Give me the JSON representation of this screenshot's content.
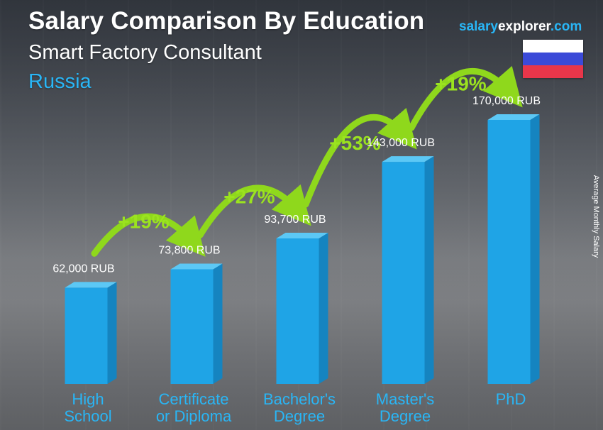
{
  "header": {
    "title": "Salary Comparison By Education",
    "subtitle": "Smart Factory Consultant",
    "country": "Russia"
  },
  "brand": {
    "part1": "salary",
    "part2": "explorer",
    "part3": ".com"
  },
  "side_label": "Average Monthly Salary",
  "colors": {
    "bar_front": "#1fa4e6",
    "bar_side": "#1584c0",
    "bar_top": "#5cc8f5",
    "arrow": "#8fd81c",
    "category_text": "#29b6f6",
    "pct_text": "#9be31f"
  },
  "chart_data": {
    "type": "bar",
    "categories": [
      [
        "High",
        "School"
      ],
      [
        "Certificate",
        "or Diploma"
      ],
      [
        "Bachelor's",
        "Degree"
      ],
      [
        "Master's",
        "Degree"
      ],
      [
        "PhD"
      ]
    ],
    "values": [
      62000,
      73800,
      93700,
      143000,
      170000
    ],
    "value_labels": [
      "62,000 RUB",
      "73,800 RUB",
      "93,700 RUB",
      "143,000 RUB",
      "170,000 RUB"
    ],
    "increases": [
      "+19%",
      "+27%",
      "+53%",
      "+19%"
    ],
    "unit": "RUB",
    "ylabel": "Average Monthly Salary",
    "ylim": [
      0,
      170000
    ]
  }
}
